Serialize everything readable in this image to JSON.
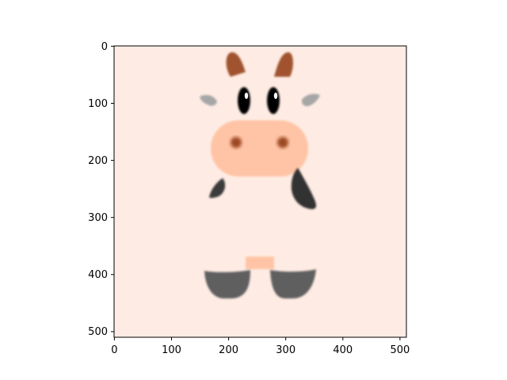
{
  "figure": {
    "image_desc_colors": {
      "background": "#feece4",
      "horn": "#a0522d",
      "ear": "#a6a6a6",
      "eye": "#000000",
      "snout": "#ffc4a6",
      "nostril": "#9c4a24",
      "spot_dark": "#333333",
      "hoof": "#5e5e5e"
    },
    "axes": {
      "x_ticks": [
        "0",
        "100",
        "200",
        "300",
        "400",
        "500"
      ],
      "y_ticks": [
        "0",
        "100",
        "200",
        "300",
        "400",
        "500"
      ],
      "xlim": [
        0,
        512
      ],
      "ylim": [
        512,
        0
      ]
    }
  }
}
